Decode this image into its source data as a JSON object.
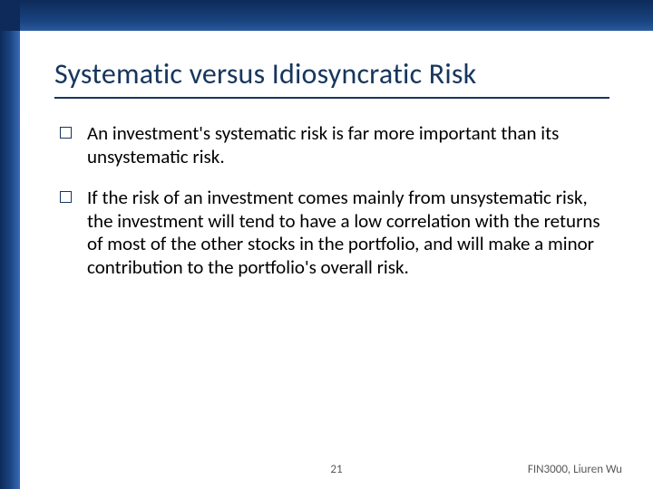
{
  "slide": {
    "title": "Systematic versus Idiosyncratic Risk",
    "bullets": [
      "An investment's systematic risk is far more important than its unsystematic risk.",
      "If the risk of an investment comes mainly from unsystematic risk, the investment will tend to have a low correlation with the returns of most of the other stocks in the portfolio, and will make a minor contribution to the portfolio's overall risk."
    ],
    "page_number": "21",
    "footer_credit": "FIN3000, Liuren Wu"
  },
  "style": {
    "frame_color_dark": "#0d2a5a",
    "frame_color_mid": "#1a4480",
    "frame_color_light": "#3a6ab8",
    "title_color": "#17365d",
    "title_fontsize": 32,
    "body_fontsize": 21,
    "body_color": "#000000",
    "footer_color": "#595959",
    "footer_fontsize": 13,
    "bullet_marker_border": "#17365d",
    "background": "#ffffff"
  }
}
